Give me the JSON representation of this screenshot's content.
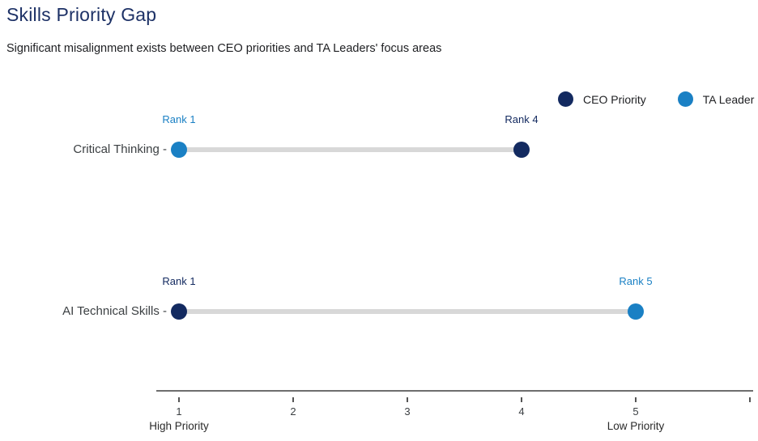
{
  "header": {
    "title": "Skills Priority Gap",
    "subtitle": "Significant misalignment exists between CEO priorities and TA Leaders' focus areas"
  },
  "legend": {
    "items": [
      {
        "name": "ceo-priority",
        "label": "CEO Priority",
        "color": "#132a60"
      },
      {
        "name": "ta-leader",
        "label": "TA Leader",
        "color": "#1a80c4"
      }
    ]
  },
  "chart_data": {
    "type": "dumbbell",
    "title": "Skills Priority Gap",
    "subtitle": "Significant misalignment exists between CEO priorities and TA Leaders' focus areas",
    "categories": [
      "Critical Thinking",
      "AI Technical Skills"
    ],
    "category_suffix": " -",
    "series": [
      {
        "name": "CEO Priority",
        "color": "#132a60",
        "values": [
          4,
          1
        ]
      },
      {
        "name": "TA Leader",
        "color": "#1a80c4",
        "values": [
          1,
          5
        ]
      }
    ],
    "rows": [
      {
        "label": "Critical Thinking",
        "points": [
          {
            "series": "TA Leader",
            "rank": 1,
            "annotation": "Rank 1"
          },
          {
            "series": "CEO Priority",
            "rank": 4,
            "annotation": "Rank 4"
          }
        ]
      },
      {
        "label": "AI Technical Skills",
        "points": [
          {
            "series": "CEO Priority",
            "rank": 1,
            "annotation": "Rank 1"
          },
          {
            "series": "TA Leader",
            "rank": 5,
            "annotation": "Rank 5"
          }
        ]
      }
    ],
    "x_axis": {
      "min": 1,
      "max": 5,
      "ticks": [
        {
          "value": 1,
          "label": "1",
          "sub_label": "High Priority"
        },
        {
          "value": 2,
          "label": "2"
        },
        {
          "value": 3,
          "label": "3"
        },
        {
          "value": 4,
          "label": "4"
        },
        {
          "value": 5,
          "label": "5",
          "sub_label": "Low Priority"
        },
        {
          "value": 6,
          "label": ""
        }
      ]
    },
    "legend_position": "top-right",
    "grid": false,
    "connector_color": "#d8d8d8"
  }
}
